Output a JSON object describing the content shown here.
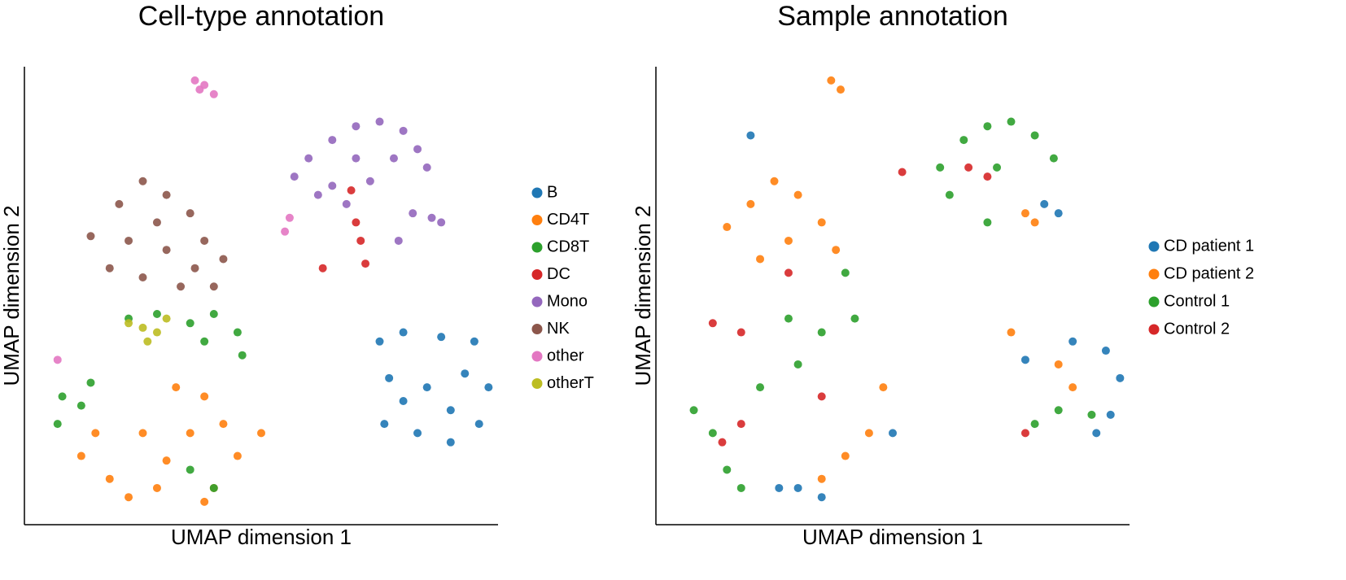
{
  "chart_data": [
    {
      "type": "scatter",
      "title": "Cell-type annotation",
      "x_label": "UMAP dimension 1",
      "y_label": "UMAP dimension 2",
      "xlim": [
        0,
        100
      ],
      "ylim": [
        0,
        100
      ],
      "series": [
        {
          "name": "B",
          "color": "#1f77b4",
          "x": [
            75,
            80,
            88,
            95,
            77,
            85,
            93,
            98,
            76,
            83,
            90,
            96,
            80,
            90
          ],
          "y": [
            40,
            42,
            41,
            40,
            32,
            30,
            33,
            30,
            22,
            20,
            18,
            22,
            27,
            25
          ]
        },
        {
          "name": "CD4T",
          "color": "#ff7f0e",
          "x": [
            12,
            18,
            22,
            28,
            30,
            35,
            38,
            32,
            42,
            45,
            50,
            40,
            25,
            15,
            38
          ],
          "y": [
            15,
            10,
            6,
            8,
            14,
            20,
            28,
            30,
            22,
            15,
            20,
            8,
            20,
            20,
            5
          ]
        },
        {
          "name": "CD8T",
          "color": "#2ca02c",
          "x": [
            8,
            12,
            7,
            14,
            22,
            28,
            35,
            40,
            45,
            46,
            38,
            40,
            35
          ],
          "y": [
            28,
            26,
            22,
            31,
            45,
            46,
            44,
            46,
            42,
            37,
            40,
            8,
            12
          ]
        },
        {
          "name": "DC",
          "color": "#d62728",
          "x": [
            69,
            70,
            71,
            72,
            63
          ],
          "y": [
            73,
            66,
            62,
            57,
            56
          ]
        },
        {
          "name": "Mono",
          "color": "#9467bd",
          "x": [
            57,
            60,
            65,
            70,
            75,
            80,
            83,
            85,
            78,
            70,
            62,
            68,
            82,
            86,
            88,
            79,
            65,
            73
          ],
          "y": [
            76,
            80,
            84,
            87,
            88,
            86,
            82,
            78,
            80,
            80,
            72,
            70,
            68,
            67,
            66,
            62,
            74,
            75
          ]
        },
        {
          "name": "NK",
          "color": "#8c564b",
          "x": [
            14,
            20,
            25,
            30,
            35,
            38,
            42,
            40,
            33,
            25,
            18,
            22,
            30,
            36,
            28
          ],
          "y": [
            63,
            70,
            75,
            72,
            68,
            62,
            58,
            52,
            52,
            54,
            56,
            62,
            60,
            56,
            66
          ]
        },
        {
          "name": "other",
          "color": "#e377c2",
          "x": [
            36,
            38,
            40,
            37,
            55,
            56,
            7
          ],
          "y": [
            97,
            96,
            94,
            95,
            64,
            67,
            36
          ]
        },
        {
          "name": "otherT",
          "color": "#bcbd22",
          "x": [
            22,
            25,
            28,
            30,
            26
          ],
          "y": [
            44,
            43,
            42,
            45,
            40
          ]
        }
      ]
    },
    {
      "type": "scatter",
      "title": "Sample annotation",
      "x_label": "UMAP dimension 1",
      "y_label": "UMAP dimension 2",
      "xlim": [
        0,
        100
      ],
      "ylim": [
        0,
        100
      ],
      "series": [
        {
          "name": "CD patient 1",
          "color": "#1f77b4",
          "x": [
            88,
            95,
            98,
            96,
            93,
            78,
            30,
            35,
            26,
            82,
            85,
            20,
            50
          ],
          "y": [
            40,
            38,
            32,
            24,
            20,
            36,
            8,
            6,
            8,
            70,
            68,
            85,
            20
          ]
        },
        {
          "name": "CD patient 2",
          "color": "#ff7f0e",
          "x": [
            37,
            39,
            15,
            20,
            25,
            30,
            35,
            28,
            22,
            38,
            78,
            80,
            75,
            85,
            40,
            45,
            35,
            88,
            48
          ],
          "y": [
            97,
            95,
            65,
            70,
            75,
            72,
            66,
            62,
            58,
            60,
            68,
            66,
            42,
            35,
            15,
            20,
            10,
            30,
            30
          ]
        },
        {
          "name": "Control 1",
          "color": "#2ca02c",
          "x": [
            60,
            65,
            70,
            75,
            80,
            84,
            72,
            62,
            8,
            12,
            15,
            18,
            22,
            28,
            35,
            42,
            30,
            85,
            92,
            80,
            40,
            70
          ],
          "y": [
            78,
            84,
            87,
            88,
            85,
            80,
            78,
            72,
            25,
            20,
            12,
            8,
            30,
            45,
            42,
            45,
            35,
            25,
            24,
            22,
            55,
            66
          ]
        },
        {
          "name": "Control 2",
          "color": "#d62728",
          "x": [
            66,
            70,
            52,
            14,
            18,
            18,
            12,
            28,
            35,
            78
          ],
          "y": [
            78,
            76,
            77,
            18,
            22,
            42,
            44,
            55,
            28,
            20
          ]
        }
      ]
    }
  ]
}
